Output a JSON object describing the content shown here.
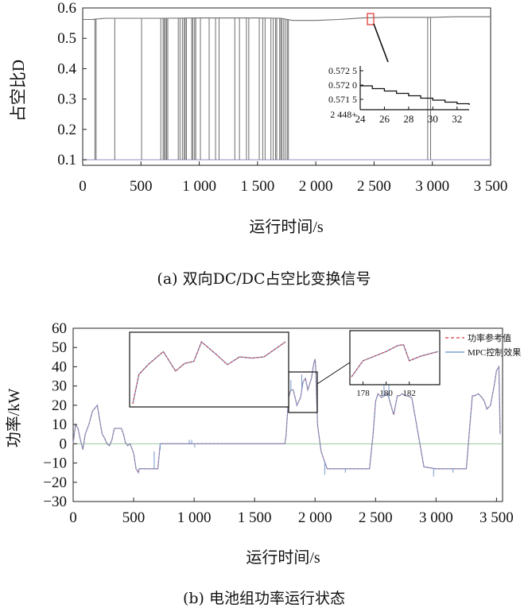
{
  "chart_data": [
    {
      "type": "line",
      "caption": "(a) 双向DC/DC占空比变换信号",
      "ylabel": "占空比D",
      "xlabel": "运行时间/s",
      "xlim": [
        0,
        3500
      ],
      "ylim": [
        0.1,
        0.6
      ],
      "xticks": [
        0,
        500,
        1000,
        1500,
        2000,
        2500,
        3000,
        3500
      ],
      "xtick_labels": [
        "0",
        "500",
        "1 000",
        "1 500",
        "2 000",
        "2 500",
        "3 000",
        "3 500"
      ],
      "yticks": [
        0.1,
        0.2,
        0.3,
        0.4,
        0.5,
        0.6
      ],
      "ytick_labels": [
        "0.1",
        "0.2",
        "0.3",
        "0.4",
        "0.5",
        "0.6"
      ],
      "grid": false,
      "colors": {
        "signal": "#6e6e6e",
        "low_level": "#b4b4d8",
        "highlight_box": "#e0302a"
      },
      "baseline_high": 0.562,
      "baseline_low": 0.1,
      "x": [
        0,
        100,
        100.5,
        200,
        300,
        500,
        700,
        1000,
        1500,
        1700,
        1800,
        2000,
        2200,
        2400,
        2600,
        2800,
        3000,
        3200,
        3500
      ],
      "y": [
        0.562,
        0.562,
        0.563,
        0.566,
        0.566,
        0.566,
        0.566,
        0.567,
        0.567,
        0.566,
        0.559,
        0.559,
        0.562,
        0.567,
        0.569,
        0.569,
        0.569,
        0.571,
        0.571
      ],
      "drops_to_low_at": [
        105,
        115,
        275,
        505,
        670,
        690,
        700,
        710,
        720,
        730,
        820,
        835,
        855,
        870,
        880,
        890,
        935,
        945,
        960,
        970,
        1010,
        1085,
        1140,
        1170,
        1305,
        1345,
        1405,
        1425,
        1515,
        1545,
        1565,
        1615,
        1635,
        1655,
        1665,
        1690,
        1700,
        1710,
        1725,
        1740,
        1755,
        1765,
        2960,
        2985
      ],
      "inset": {
        "x": [
          24,
          25,
          26,
          27,
          28,
          29,
          30,
          31,
          32,
          33
        ],
        "y": [
          0.57206,
          0.57199,
          0.57193,
          0.57187,
          0.57181,
          0.57175,
          0.5717,
          0.57165,
          0.57161,
          0.57158
        ],
        "xlim": [
          24,
          33
        ],
        "ylim": [
          0.57146,
          0.57256
        ],
        "xticks": [
          24,
          26,
          28,
          30,
          32
        ],
        "xtick_labels": [
          "24",
          "26",
          "28",
          "30",
          "32"
        ],
        "ytick_labels": [
          "0.572 5",
          "0.572 0",
          "0.571 5",
          "2 448+"
        ]
      }
    },
    {
      "type": "line",
      "caption": "(b) 电池组功率运行状态",
      "ylabel": "功率/kW",
      "xlabel": "运行时间/s",
      "xlim": [
        0,
        3550
      ],
      "ylim": [
        -30,
        60
      ],
      "xticks": [
        0,
        500,
        1000,
        1500,
        2000,
        2500,
        3000,
        3500
      ],
      "xtick_labels": [
        "0",
        "500",
        "1 000",
        "1 500",
        "2 000",
        "2 500",
        "3 000",
        "3 500"
      ],
      "yticks": [
        -30,
        -20,
        -10,
        0,
        10,
        20,
        30,
        40,
        50,
        60
      ],
      "ytick_labels": [
        "−30",
        "−20",
        "−10",
        "0",
        "10",
        "20",
        "30",
        "40",
        "50",
        "60"
      ],
      "grid": false,
      "legend_position": "top-right",
      "colors": {
        "reference": "#d43a3a",
        "control": "#7f9fd0",
        "zero_line": "#9bc79b"
      },
      "series": [
        {
          "name": "功率参考值",
          "x": [
            0,
            20,
            40,
            60,
            80,
            100,
            130,
            160,
            200,
            220,
            240,
            260,
            280,
            300,
            320,
            340,
            380,
            400,
            420,
            430,
            450,
            470,
            500,
            520,
            540,
            545,
            600,
            650,
            680,
            700,
            720,
            760,
            800,
            860,
            900,
            950,
            980,
            1000,
            1020,
            1050,
            1080,
            1090,
            1300,
            1350,
            1400,
            1500,
            1600,
            1700,
            1750,
            1760,
            1780,
            1800,
            1820,
            1850,
            1880,
            1900,
            1920,
            1940,
            1950,
            1970,
            1990,
            2000,
            2005,
            2020,
            2050,
            2100,
            2200,
            2300,
            2400,
            2450,
            2480,
            2500,
            2520,
            2550,
            2600,
            2650,
            2680,
            2700,
            2720,
            2750,
            2800,
            2900,
            3000,
            3150,
            3250,
            3300,
            3320,
            3350,
            3380,
            3400,
            3420,
            3450,
            3480,
            3500,
            3520,
            3530
          ],
          "y": [
            0,
            10,
            8,
            2,
            -3,
            5,
            10,
            17,
            20,
            12,
            5,
            3,
            0,
            -1,
            2,
            8,
            8,
            8,
            4,
            1,
            -1,
            0,
            -5,
            -13,
            -15,
            -13,
            -13,
            -13,
            -13,
            -13,
            0,
            0,
            0,
            0,
            0,
            0,
            0,
            0,
            0,
            0,
            0,
            0,
            0,
            0,
            0,
            0,
            0,
            0,
            0,
            4,
            24,
            28,
            28,
            20,
            24,
            32,
            34,
            28,
            30,
            34,
            42,
            44,
            40,
            10,
            -4,
            -13,
            -13,
            -13,
            -13,
            -13,
            5,
            22,
            26,
            24,
            26,
            15,
            25,
            25,
            26,
            25,
            24,
            -12,
            -13,
            -13,
            -13,
            25,
            25,
            26,
            24,
            22,
            18,
            20,
            30,
            38,
            40,
            5
          ]
        },
        {
          "name": "MPC控制效果",
          "x": [
            0,
            20,
            40,
            60,
            80,
            100,
            130,
            160,
            200,
            220,
            240,
            260,
            280,
            300,
            320,
            340,
            380,
            400,
            420,
            430,
            450,
            470,
            500,
            520,
            540,
            545,
            600,
            650,
            680,
            700,
            720,
            760,
            800,
            860,
            900,
            950,
            980,
            1000,
            1020,
            1050,
            1080,
            1090,
            1300,
            1350,
            1400,
            1500,
            1600,
            1700,
            1750,
            1760,
            1780,
            1800,
            1820,
            1850,
            1880,
            1900,
            1920,
            1940,
            1950,
            1970,
            1990,
            2000,
            2005,
            2020,
            2050,
            2100,
            2200,
            2300,
            2400,
            2450,
            2480,
            2500,
            2520,
            2550,
            2600,
            2650,
            2680,
            2700,
            2720,
            2750,
            2800,
            2900,
            3000,
            3150,
            3250,
            3300,
            3320,
            3350,
            3380,
            3400,
            3420,
            3450,
            3480,
            3500,
            3520,
            3530
          ],
          "y": [
            0,
            10,
            8,
            2,
            -3,
            5,
            10,
            17,
            20,
            12,
            5,
            3,
            0,
            -1,
            2,
            8,
            8,
            8,
            4,
            1,
            -1,
            0,
            -5,
            -13,
            -15,
            -13,
            -13,
            -13,
            -13,
            -13,
            0,
            0,
            0,
            0,
            0,
            0,
            0,
            0,
            0,
            0,
            0,
            0,
            0,
            0,
            0,
            0,
            0,
            0,
            0,
            4,
            24,
            28,
            28,
            20,
            24,
            32,
            34,
            28,
            30,
            34,
            42,
            44,
            40,
            10,
            -4,
            -13,
            -13,
            -13,
            -13,
            -13,
            5,
            22,
            26,
            24,
            26,
            15,
            25,
            25,
            26,
            25,
            24,
            -12,
            -13,
            -13,
            -13,
            25,
            25,
            26,
            24,
            22,
            18,
            20,
            30,
            38,
            40,
            5
          ]
        }
      ],
      "spikes": [
        {
          "x": 670,
          "y": -4
        },
        {
          "x": 720,
          "y": -3
        },
        {
          "x": 960,
          "y": 2
        },
        {
          "x": 980,
          "y": 2
        },
        {
          "x": 1005,
          "y": -2
        },
        {
          "x": 1800,
          "y": 33
        },
        {
          "x": 1890,
          "y": 36
        },
        {
          "x": 2080,
          "y": -16
        },
        {
          "x": 2250,
          "y": -15
        },
        {
          "x": 2570,
          "y": 32
        },
        {
          "x": 2610,
          "y": 36
        },
        {
          "x": 2980,
          "y": -17
        },
        {
          "x": 3140,
          "y": -15
        }
      ],
      "inset_left": {
        "x": [
          0,
          0.04,
          0.1,
          0.2,
          0.28,
          0.34,
          0.4,
          0.45,
          0.55,
          0.62,
          0.7,
          0.78,
          0.86,
          1.0
        ],
        "y": [
          0.0,
          0.45,
          0.6,
          0.8,
          0.5,
          0.62,
          0.65,
          0.95,
          0.75,
          0.6,
          0.72,
          0.7,
          0.72,
          0.95
        ]
      },
      "inset_right": {
        "xlim": [
          177,
          184.5
        ],
        "x": [
          177,
          178,
          179,
          180,
          181,
          181.5,
          182,
          183,
          184.5
        ],
        "y": [
          0.1,
          0.45,
          0.55,
          0.65,
          0.78,
          0.8,
          0.45,
          0.55,
          0.65
        ],
        "xticks": [
          178,
          180,
          182
        ],
        "xtick_labels": [
          "178",
          "180",
          "182"
        ]
      }
    }
  ]
}
